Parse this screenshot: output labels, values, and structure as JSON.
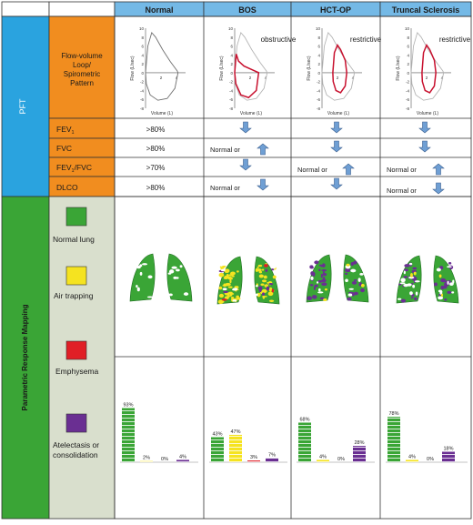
{
  "columns": [
    "Normal",
    "BOS",
    "HCT-OP",
    "Truncal Sclerosis"
  ],
  "sections": {
    "pft": "PFT",
    "prm": "Parametric Response Mapping"
  },
  "row_labels": {
    "loop": [
      "Flow-volume",
      "Loop/",
      "Spirometric",
      "Pattern"
    ],
    "fev1": "FEV",
    "fev1_sub": "1",
    "fvc": "FVC",
    "ratio_a": "FEV",
    "ratio_sub": "1",
    "ratio_b": "/FVC",
    "dlco": "DLCO"
  },
  "loops": {
    "y_ticks": [
      "10",
      "8",
      "6",
      "4",
      "2",
      "0",
      "-2",
      "-4",
      "-6",
      "-8"
    ],
    "x_ticks": [
      "2",
      "4"
    ],
    "y_axis_label": "Flow (L/sec)",
    "x_axis_label": "Volume (L)",
    "patterns": [
      "",
      "obstructive",
      "restrictive",
      "restrictive"
    ]
  },
  "pft_values": {
    "fev1": {
      "normal": ">80%",
      "bos": "decrease",
      "hctop": "decrease",
      "ts": "decrease"
    },
    "fvc": {
      "normal": ">80%",
      "bos_text": "Normal or",
      "bos": "increase",
      "hctop": "decrease",
      "ts": "decrease"
    },
    "ratio": {
      "normal": ">70%",
      "bos": "decrease",
      "hctop_text": "Normal or",
      "hctop": "increase",
      "ts_text": "Normal or",
      "ts": "increase"
    },
    "dlco": {
      "normal": ">80%",
      "bos_text": "Normal or",
      "bos": "decrease",
      "hctop": "decrease",
      "ts_text": "Normal or",
      "ts": "decrease"
    }
  },
  "legend": [
    {
      "label": "Normal lung",
      "color": "#3aa536"
    },
    {
      "label": "Air trapping",
      "color": "#f5e320"
    },
    {
      "label": "Emphysema",
      "color": "#e01f26"
    },
    {
      "label": "Atelectasis or consolidation",
      "color": "#6a2f92"
    }
  ],
  "colors": {
    "header_blue": "#74b9e6",
    "pft_blue": "#2aa3df",
    "label_orange": "#f18d1f",
    "prm_green": "#3aa536",
    "legend_bg": "#d9dfcd",
    "arrow_fill": "#6f9fd4",
    "loop_red": "#c8102e",
    "loop_grey": "#b5b5b5"
  },
  "chart_data": [
    {
      "type": "bar",
      "title": "Normal",
      "categories": [
        "Normal lung",
        "Air trapping",
        "Emphysema",
        "Atelectasis or consolidation"
      ],
      "values": [
        93,
        2,
        0,
        4
      ],
      "labels": [
        "93%",
        "2%",
        "0%",
        "4%"
      ]
    },
    {
      "type": "bar",
      "title": "BOS",
      "categories": [
        "Normal lung",
        "Air trapping",
        "Emphysema",
        "Atelectasis or consolidation"
      ],
      "values": [
        43,
        47,
        3,
        7
      ],
      "labels": [
        "43%",
        "47%",
        "3%",
        "7%"
      ]
    },
    {
      "type": "bar",
      "title": "HCT-OP",
      "categories": [
        "Normal lung",
        "Air trapping",
        "Emphysema",
        "Atelectasis or consolidation"
      ],
      "values": [
        68,
        4,
        0,
        28
      ],
      "labels": [
        "68%",
        "4%",
        "0%",
        "28%"
      ]
    },
    {
      "type": "bar",
      "title": "Truncal Sclerosis",
      "categories": [
        "Normal lung",
        "Air trapping",
        "Emphysema",
        "Atelectasis or consolidation"
      ],
      "values": [
        78,
        4,
        0,
        18
      ],
      "labels": [
        "78%",
        "4%",
        "0%",
        "18%"
      ]
    }
  ]
}
